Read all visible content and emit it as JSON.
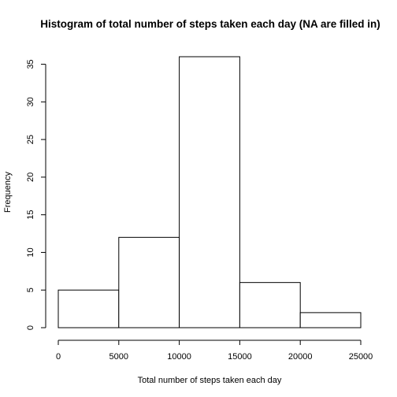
{
  "chart_data": {
    "type": "bar",
    "title": "Histogram of total number of steps taken each day (NA are filled in)",
    "xlabel": "Total number of steps taken each day",
    "ylabel": "Frequency",
    "bins": [
      {
        "start": 0,
        "end": 5000,
        "count": 5
      },
      {
        "start": 5000,
        "end": 10000,
        "count": 12
      },
      {
        "start": 10000,
        "end": 15000,
        "count": 36
      },
      {
        "start": 15000,
        "end": 20000,
        "count": 6
      },
      {
        "start": 20000,
        "end": 25000,
        "count": 2
      }
    ],
    "xlim": [
      0,
      25000
    ],
    "ylim": [
      0,
      36
    ],
    "x_ticks": [
      0,
      5000,
      10000,
      15000,
      20000,
      25000
    ],
    "x_tick_labels": [
      "0",
      "5000",
      "10000",
      "15000",
      "20000",
      "25000"
    ],
    "y_ticks": [
      0,
      5,
      10,
      15,
      20,
      25,
      30,
      35
    ],
    "y_tick_labels": [
      "0",
      "5",
      "10",
      "15",
      "20",
      "25",
      "30",
      "35"
    ],
    "grid": false,
    "legend": "none",
    "colors": {
      "bar_fill": "#ffffff",
      "bar_stroke": "#000000",
      "axis": "#000000",
      "text": "#000000"
    }
  }
}
